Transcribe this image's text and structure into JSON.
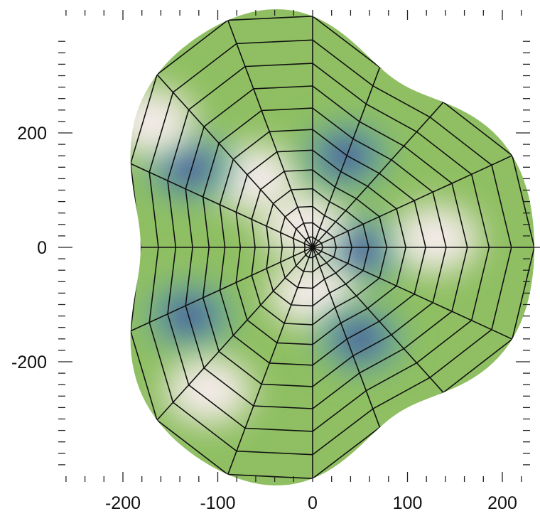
{
  "chart_data": {
    "type": "heatmap",
    "title": "",
    "xlabel": "",
    "ylabel": "",
    "xlim": [
      -265,
      240
    ],
    "ylim": [
      -395,
      340
    ],
    "x_ticks": [
      -200,
      -100,
      0,
      100,
      200
    ],
    "x_tick_labels": [
      "-200",
      "-100",
      "0",
      "100",
      "200"
    ],
    "y_ticks": [
      200,
      0,
      -200
    ],
    "y_tick_labels": [
      "200",
      "0",
      "-200"
    ],
    "grid": false,
    "legend": "none",
    "boundary": {
      "x_max": 210,
      "x_min": -250,
      "y_max": 330,
      "y_min": -390
    },
    "mesh": {
      "radial_rings": 12,
      "angular_spokes": 16
    },
    "colormap": {
      "background": "#8fbf62",
      "low": "#3c3f9a",
      "mid": "#6aa8a0",
      "high": "#f6ecec"
    },
    "blobs": [
      {
        "x": 50,
        "y": -5,
        "level": "low"
      },
      {
        "x": 130,
        "y": 15,
        "level": "high"
      },
      {
        "x": -10,
        "y": 40,
        "level": "high"
      },
      {
        "x": 0,
        "y": -80,
        "level": "high"
      },
      {
        "x": -60,
        "y": 120,
        "level": "high"
      },
      {
        "x": -130,
        "y": 140,
        "level": "low"
      },
      {
        "x": -130,
        "y": -120,
        "level": "low"
      },
      {
        "x": 50,
        "y": -160,
        "level": "low"
      },
      {
        "x": 35,
        "y": 160,
        "level": "low"
      },
      {
        "x": -110,
        "y": -250,
        "level": "high"
      },
      {
        "x": -170,
        "y": 220,
        "level": "high"
      }
    ]
  }
}
